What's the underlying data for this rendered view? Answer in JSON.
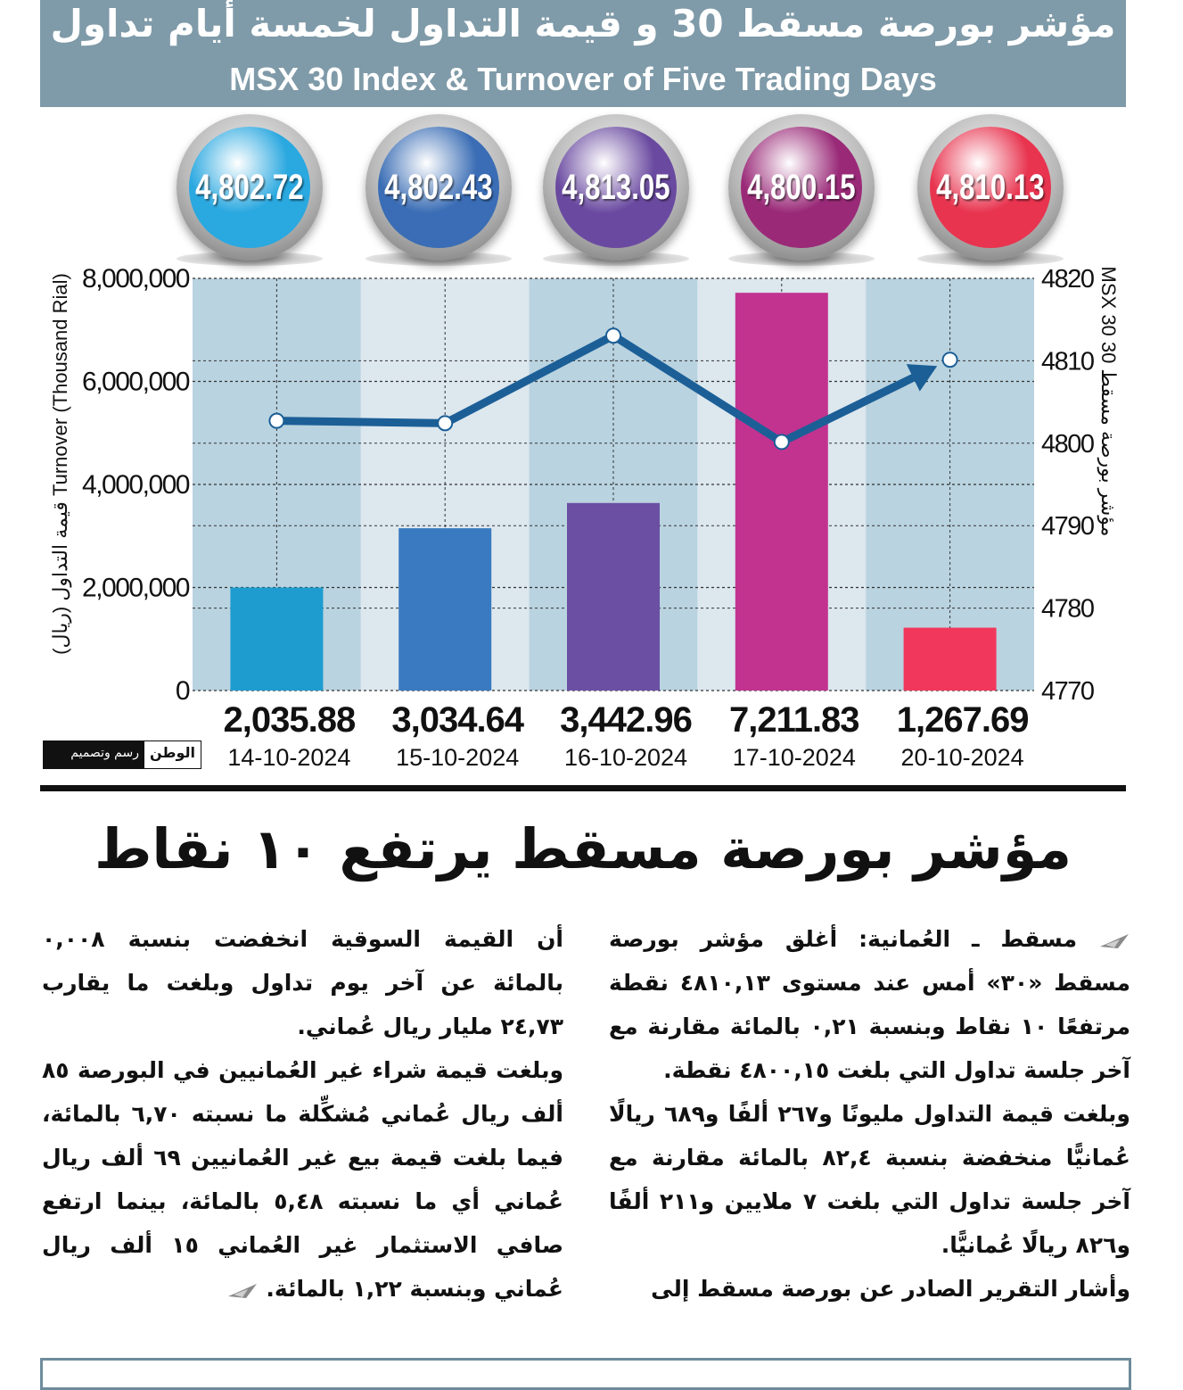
{
  "header": {
    "title_ar": "مؤشر بورصة مسقط 30 و قيمة التداول لخمسة أيام تداول",
    "title_en": "MSX 30 Index & Turnover of Five Trading Days"
  },
  "bubbles": [
    {
      "label": "4,802.72",
      "color": "#2aa8e0"
    },
    {
      "label": "4,802.43",
      "color": "#3a6db5"
    },
    {
      "label": "4,813.05",
      "color": "#6a4aa0"
    },
    {
      "label": "4,800.15",
      "color": "#9a2a78"
    },
    {
      "label": "4,810.13",
      "color": "#e8344f"
    }
  ],
  "chart_data": {
    "type": "bar",
    "categories": [
      "14-10-2024",
      "15-10-2024",
      "16-10-2024",
      "17-10-2024",
      "20-10-2024"
    ],
    "series": [
      {
        "values": [
          2035.88,
          3034.64,
          3442.96,
          7211.83,
          1267.69
        ],
        "axis": "left",
        "colors": [
          "#1e9ccf",
          "#3a7ac0",
          "#6b4fa2",
          "#c1338f",
          "#f2375c"
        ]
      },
      {
        "type": "line",
        "axis": "right",
        "values": [
          4802.72,
          4802.43,
          4813.05,
          4800.15,
          4810.13
        ],
        "color": "#1c5f97"
      }
    ],
    "left_axis": {
      "label_ar": "قيمة التداول (ريال)",
      "label_en": "Turnover (Thousand Rial)",
      "ticks": [
        "0",
        "2,000,000",
        "4,000,000",
        "6,000,000",
        "8,000,000"
      ],
      "ylim": [
        0,
        8000000
      ]
    },
    "right_axis": {
      "label_ar": "مؤشر بورصة مسقط 30",
      "label_en": "MSX 30",
      "ticks": [
        "4770",
        "4780",
        "4790",
        "4800",
        "4810",
        "4820"
      ],
      "ylim": [
        4770,
        4820
      ]
    },
    "bar_scaled_values": [
      2000000,
      3150000,
      3640000,
      7720000,
      1220000
    ],
    "grid": true
  },
  "logo": {
    "brand": "الوطن",
    "credit": "رسم وتصميم"
  },
  "article": {
    "headline": "مؤشر بورصة مسقط يرتفع ١٠ نقاط",
    "right_paragraphs": [
      "مسقط ـ العُمانية: أغلق مؤشر بورصة مسقط «٣٠» أمس عند مستوى ٤٨١٠,١٣ نقطة مرتفعًا ١٠ نقاط وبنسبة ٠,٢١ بالمائة مقارنة مع آخر جلسة تداول التي بلغت ٤٨٠٠,١٥ نقطة.",
      "وبلغت قيمة التداول مليونًا و٢٦٧ ألفًا و٦٨٩ ريالًا عُمانيًّا منخفضة بنسبة ٨٢,٤ بالمائة مقارنة مع آخر جلسة تداول التي بلغت ٧ ملايين و٢١١ ألفًا و٨٢٦ ريالًا عُمانيًّا.",
      "وأشار التقرير الصادر عن بورصة مسقط إلى"
    ],
    "left_paragraphs": [
      "أن القيمة السوقية انخفضت بنسبة ٠,٠٠٨ بالمائة عن آخر يوم تداول وبلغت ما يقارب ٢٤,٧٣ مليار ريال عُماني.",
      "وبلغت قيمة شراء غير العُمانيين في البورصة ٨٥ ألف ريال عُماني مُشكِّلة ما نسبته ٦,٧٠ بالمائة، فيما بلغت قيمة بيع غير العُمانيين ٦٩ ألف ريال عُماني أي ما نسبته ٥,٤٨ بالمائة، بينما ارتفع صافي الاستثمار غير العُماني ١٥ ألف ريال عُماني وبنسبة ١,٢٢ بالمائة."
    ]
  }
}
